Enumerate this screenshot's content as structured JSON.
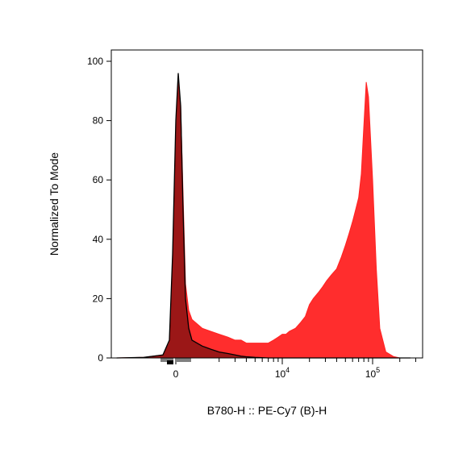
{
  "chart_data": {
    "type": "area",
    "xlabel": "B780-H :: PE-Cy7 (B)-H",
    "ylabel": "Normalized To Mode",
    "ylim": [
      0,
      100
    ],
    "x_scale": "biexponential",
    "y_ticks": [
      {
        "value": 0,
        "label": "0"
      },
      {
        "value": 20,
        "label": "20"
      },
      {
        "value": 40,
        "label": "40"
      },
      {
        "value": 60,
        "label": "60"
      },
      {
        "value": 80,
        "label": "80"
      },
      {
        "value": 100,
        "label": "100"
      }
    ],
    "x_ticks": [
      {
        "value": 0,
        "label": "0",
        "sup": ""
      },
      {
        "value": 10000,
        "label": "10",
        "sup": "4"
      },
      {
        "value": 100000,
        "label": "10",
        "sup": "5"
      }
    ],
    "grid": false,
    "legend": "none",
    "series": [
      {
        "color": "#ff2222",
        "fill_opacity": 0.95,
        "stroke": "#ff2222",
        "x": [
          -3000,
          -1500,
          -800,
          -400,
          -200,
          0,
          150,
          300,
          450,
          600,
          800,
          1000,
          1300,
          1600,
          2000,
          2500,
          3000,
          3500,
          4000,
          4500,
          5000,
          6000,
          7000,
          8000,
          9000,
          10000,
          11000,
          12000,
          14000,
          16000,
          18000,
          20000,
          22000,
          25000,
          28000,
          31000,
          35000,
          40000,
          45000,
          50000,
          55000,
          60000,
          65000,
          70000,
          75000,
          80000,
          85000,
          90000,
          100000,
          110000,
          120000,
          140000,
          170000,
          200000,
          262000
        ],
        "y": [
          0,
          0.2,
          1,
          5,
          30,
          70,
          93,
          85,
          55,
          25,
          16,
          13,
          10,
          9,
          8,
          7,
          6,
          6,
          5,
          5,
          5,
          5,
          5,
          6,
          7,
          8,
          8,
          9,
          10,
          12,
          14,
          18,
          20,
          22,
          24,
          26,
          28,
          30,
          34,
          38,
          42,
          46,
          50,
          54,
          62,
          78,
          93,
          88,
          60,
          30,
          10,
          2,
          0.5,
          0,
          0
        ]
      },
      {
        "color": "#7a1010",
        "fill_opacity": 0.75,
        "stroke": "#000000",
        "x": [
          -3000,
          -1500,
          -800,
          -400,
          -200,
          0,
          150,
          300,
          450,
          600,
          800,
          1000,
          1300,
          1600,
          2000,
          2500,
          3000,
          3500,
          4000,
          5000,
          7000,
          262000
        ],
        "y": [
          0,
          0.2,
          1,
          6,
          35,
          80,
          96,
          85,
          50,
          20,
          10,
          6,
          4,
          3,
          2,
          1.5,
          1,
          0.6,
          0.4,
          0.2,
          0,
          0
        ]
      }
    ]
  }
}
